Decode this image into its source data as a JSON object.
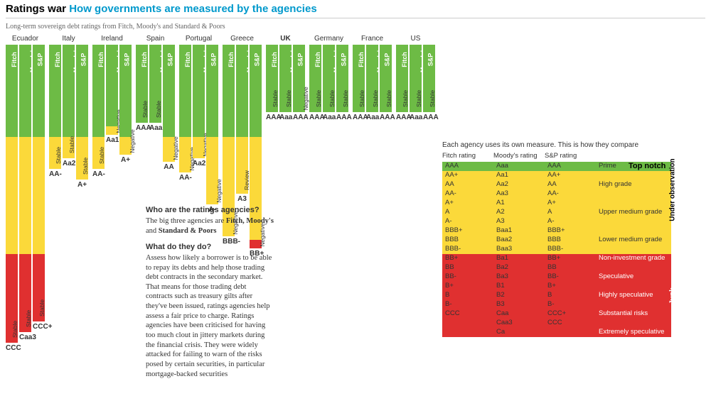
{
  "title_black": "Ratings war",
  "title_blue": "How governments are measured by the agencies",
  "subtitle": "Long-term sovereign debt ratings from Fitch, Moody's and Standard & Poors",
  "colors": {
    "green": "#6dbb45",
    "yellow": "#fbd93a",
    "red": "#e03030"
  },
  "chart_total_height": 420,
  "agencies": [
    "Fitch",
    "Moody's",
    "S&P"
  ],
  "countries": [
    {
      "name": "Ecuador",
      "bold": false,
      "cols": [
        {
          "agency": "Fitch",
          "segs": [
            [
              "green",
              130
            ],
            [
              "yellow",
              165
            ],
            [
              "red",
              125
            ]
          ],
          "outlook": "Stable",
          "outlook_dy": 408,
          "rating": "CCC"
        },
        {
          "agency": "Moody's",
          "segs": [
            [
              "green",
              130
            ],
            [
              "yellow",
              165
            ],
            [
              "red",
              110
            ]
          ],
          "outlook": "Stable",
          "outlook_dy": 393,
          "rating": "Caa3"
        },
        {
          "agency": "S&P",
          "segs": [
            [
              "green",
              130
            ],
            [
              "yellow",
              165
            ],
            [
              "red",
              95
            ]
          ],
          "outlook": "Stable",
          "outlook_dy": 378,
          "rating": "CCC+"
        }
      ]
    },
    {
      "name": "Italy",
      "bold": false,
      "cols": [
        {
          "agency": "Fitch",
          "segs": [
            [
              "green",
              130
            ],
            [
              "yellow",
              45
            ]
          ],
          "outlook": "Stable",
          "outlook_dy": 163,
          "rating": "AA-"
        },
        {
          "agency": "Moody's",
          "segs": [
            [
              "green",
              130
            ],
            [
              "yellow",
              30
            ]
          ],
          "outlook": "Stable",
          "outlook_dy": 148,
          "rating": "Aa2"
        },
        {
          "agency": "S&P",
          "segs": [
            [
              "green",
              130
            ],
            [
              "yellow",
              60
            ]
          ],
          "outlook": "Stable",
          "outlook_dy": 178,
          "rating": "A+"
        }
      ]
    },
    {
      "name": "Ireland",
      "bold": false,
      "cols": [
        {
          "agency": "Fitch",
          "segs": [
            [
              "green",
              130
            ],
            [
              "yellow",
              45
            ]
          ],
          "outlook": "Stable",
          "outlook_dy": 163,
          "rating": "AA-"
        },
        {
          "agency": "Moody's",
          "segs": [
            [
              "green",
              115
            ],
            [
              "yellow",
              12
            ]
          ],
          "outlook": "Negative",
          "outlook_dy": 115,
          "rating": "Aa1"
        },
        {
          "agency": "S&P",
          "segs": [
            [
              "green",
              130
            ],
            [
              "yellow",
              25
            ]
          ],
          "outlook": "Negative",
          "outlook_dy": 143,
          "rating": "A+"
        }
      ]
    },
    {
      "name": "Spain",
      "bold": false,
      "cols": [
        {
          "agency": "Fitch",
          "segs": [
            [
              "green",
              110
            ]
          ],
          "outlook": "Stable",
          "outlook_dy": 98,
          "rating": "AAA"
        },
        {
          "agency": "Moody's",
          "segs": [
            [
              "green",
              110
            ]
          ],
          "outlook": "Stable",
          "outlook_dy": 98,
          "rating": "Aaa"
        },
        {
          "agency": "S&P",
          "segs": [
            [
              "green",
              130
            ],
            [
              "yellow",
              35
            ]
          ],
          "outlook": "Negative",
          "outlook_dy": 153,
          "rating": "AA"
        }
      ]
    },
    {
      "name": "Portugal",
      "bold": false,
      "cols": [
        {
          "agency": "Fitch",
          "segs": [
            [
              "green",
              130
            ],
            [
              "yellow",
              50
            ]
          ],
          "outlook": "Negative",
          "outlook_dy": 168,
          "rating": "AA-"
        },
        {
          "agency": "Moody's",
          "segs": [
            [
              "green",
              130
            ],
            [
              "yellow",
              30
            ]
          ],
          "outlook": "Negative",
          "outlook_dy": 148,
          "rating": "Aa2"
        },
        {
          "agency": "S&P",
          "segs": [
            [
              "green",
              130
            ],
            [
              "yellow",
              95
            ]
          ],
          "outlook": "Negative",
          "outlook_dy": 213,
          "rating": "A-"
        }
      ]
    },
    {
      "name": "Greece",
      "bold": false,
      "cols": [
        {
          "agency": "Fitch",
          "segs": [
            [
              "green",
              130
            ],
            [
              "yellow",
              140
            ]
          ],
          "outlook": "Negative",
          "outlook_dy": 258,
          "rating": "BBB-"
        },
        {
          "agency": "Moody's",
          "segs": [
            [
              "green",
              130
            ],
            [
              "yellow",
              80
            ]
          ],
          "outlook": "Review",
          "outlook_dy": 198,
          "rating": "A3"
        },
        {
          "agency": "S&P",
          "segs": [
            [
              "green",
              130
            ],
            [
              "yellow",
              145
            ],
            [
              "red",
              12
            ]
          ],
          "outlook": "Negative",
          "outlook_dy": 275,
          "rating": "BB+"
        }
      ]
    },
    {
      "name": "UK",
      "bold": true,
      "cols": [
        {
          "agency": "Fitch",
          "segs": [
            [
              "green",
              95
            ]
          ],
          "outlook": "Stable",
          "outlook_dy": 83,
          "rating": "AAA"
        },
        {
          "agency": "Moody's",
          "segs": [
            [
              "green",
              95
            ]
          ],
          "outlook": "Stable",
          "outlook_dy": 83,
          "rating": "Aaa"
        },
        {
          "agency": "S&P",
          "segs": [
            [
              "green",
              95
            ]
          ],
          "outlook": "Negative",
          "outlook_dy": 83,
          "rating": "AAA"
        }
      ]
    },
    {
      "name": "Germany",
      "bold": false,
      "cols": [
        {
          "agency": "Fitch",
          "segs": [
            [
              "green",
              95
            ]
          ],
          "outlook": "Stable",
          "outlook_dy": 83,
          "rating": "AAA"
        },
        {
          "agency": "Moody's",
          "segs": [
            [
              "green",
              95
            ]
          ],
          "outlook": "Stable",
          "outlook_dy": 83,
          "rating": "Aaa"
        },
        {
          "agency": "S&P",
          "segs": [
            [
              "green",
              95
            ]
          ],
          "outlook": "Stable",
          "outlook_dy": 83,
          "rating": "AAA"
        }
      ]
    },
    {
      "name": "France",
      "bold": false,
      "cols": [
        {
          "agency": "Fitch",
          "segs": [
            [
              "green",
              95
            ]
          ],
          "outlook": "Stable",
          "outlook_dy": 83,
          "rating": "AAA"
        },
        {
          "agency": "Moody's",
          "segs": [
            [
              "green",
              95
            ]
          ],
          "outlook": "Stable",
          "outlook_dy": 83,
          "rating": "Aaa"
        },
        {
          "agency": "S&P",
          "segs": [
            [
              "green",
              95
            ]
          ],
          "outlook": "Stable",
          "outlook_dy": 83,
          "rating": "AAA"
        }
      ]
    },
    {
      "name": "US",
      "bold": false,
      "cols": [
        {
          "agency": "Fitch",
          "segs": [
            [
              "green",
              95
            ]
          ],
          "outlook": "Stable",
          "outlook_dy": 83,
          "rating": "AAA"
        },
        {
          "agency": "Moody's",
          "segs": [
            [
              "green",
              95
            ]
          ],
          "outlook": "Stable",
          "outlook_dy": 83,
          "rating": "Aaa"
        },
        {
          "agency": "S&P",
          "segs": [
            [
              "green",
              95
            ]
          ],
          "outlook": "Stable",
          "outlook_dy": 83,
          "rating": "AAA"
        }
      ]
    }
  ],
  "info": {
    "q1": "Who are the ratings agencies?",
    "a1_html": "The big three agencies are <b>Fitch, Moody's</b> and <b>Standard & Poors</b>",
    "q2": "What do they do?",
    "a2": "Assess how likely a borrower is to be able to repay its debts and help those trading debt contracts in the secondary market. That means for those trading debt contracts such as treasury gilts after they've been issued, ratings agencies help assess a fair price to charge. Ratings agencies have been criticised for having too much clout in jittery markets during the financial crisis. They were widely attacked for failing to warn of the risks posed by certain securities, in particular mortgage-backed securities"
  },
  "compare": {
    "title": "Each agency uses its own measure. This is how they compare",
    "headers": [
      "Fitch rating",
      "Moody's rating",
      "S&P rating"
    ],
    "rows": [
      {
        "fitch": "AAA",
        "moodys": "Aaa",
        "sp": "AAA",
        "band": "green",
        "desc": "Prime"
      },
      {
        "fitch": "AA+",
        "moodys": "Aa1",
        "sp": "AA+",
        "band": "yellow",
        "desc": ""
      },
      {
        "fitch": "AA",
        "moodys": "Aa2",
        "sp": "AA",
        "band": "yellow",
        "desc": "High grade"
      },
      {
        "fitch": "AA-",
        "moodys": "Aa3",
        "sp": "AA-",
        "band": "yellow",
        "desc": ""
      },
      {
        "fitch": "A+",
        "moodys": "A1",
        "sp": "A+",
        "band": "yellow",
        "desc": ""
      },
      {
        "fitch": "A",
        "moodys": "A2",
        "sp": "A",
        "band": "yellow",
        "desc": "Upper medium grade"
      },
      {
        "fitch": "A-",
        "moodys": "A3",
        "sp": "A-",
        "band": "yellow",
        "desc": ""
      },
      {
        "fitch": "BBB+",
        "moodys": "Baa1",
        "sp": "BBB+",
        "band": "yellow",
        "desc": ""
      },
      {
        "fitch": "BBB",
        "moodys": "Baa2",
        "sp": "BBB",
        "band": "yellow",
        "desc": "Lower medium grade"
      },
      {
        "fitch": "BBB-",
        "moodys": "Baa3",
        "sp": "BBB-",
        "band": "yellow",
        "desc": ""
      },
      {
        "fitch": "BB+",
        "moodys": "Ba1",
        "sp": "BB+",
        "band": "red",
        "desc": "Non-investment grade"
      },
      {
        "fitch": "BB",
        "moodys": "Ba2",
        "sp": "BB",
        "band": "red",
        "desc": ""
      },
      {
        "fitch": "BB-",
        "moodys": "Ba3",
        "sp": "BB-",
        "band": "red",
        "desc": "Speculative"
      },
      {
        "fitch": "B+",
        "moodys": "B1",
        "sp": "B+",
        "band": "red",
        "desc": ""
      },
      {
        "fitch": "B",
        "moodys": "B2",
        "sp": "B",
        "band": "red",
        "desc": "Highly speculative"
      },
      {
        "fitch": "B-",
        "moodys": "B3",
        "sp": "B-",
        "band": "red",
        "desc": ""
      },
      {
        "fitch": "CCC",
        "moodys": "Caa",
        "sp": "CCC+",
        "band": "red",
        "desc": "Substantial risks"
      },
      {
        "fitch": "",
        "moodys": "Caa3",
        "sp": "CCC",
        "band": "red",
        "desc": ""
      },
      {
        "fitch": "",
        "moodys": "Ca",
        "sp": "",
        "band": "red",
        "desc": "Extremely speculative"
      }
    ],
    "band_labels": [
      {
        "text": "Top notch",
        "row_from": 0,
        "row_to": 0,
        "color": "#000"
      },
      {
        "text": "Under observation",
        "row_from": 1,
        "row_to": 9,
        "color": "#000"
      },
      {
        "text": "Junk",
        "row_from": 10,
        "row_to": 18,
        "color": "#fff"
      }
    ]
  }
}
